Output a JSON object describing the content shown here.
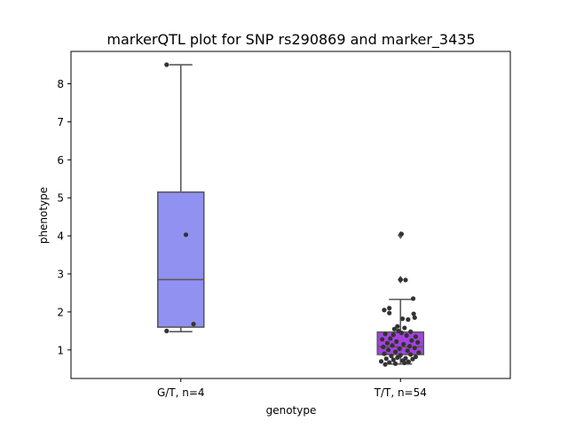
{
  "chart_data": {
    "type": "box",
    "title": "markerQTL plot for SNP rs290869 and marker_3435",
    "xlabel": "genotype",
    "ylabel": "phenotype",
    "ylim": [
      0.25,
      8.85
    ],
    "yticks": [
      1,
      2,
      3,
      4,
      5,
      6,
      7,
      8
    ],
    "categories": [
      "G/T, n=4",
      "T/T, n=54"
    ],
    "colors": [
      "#9191f2",
      "#a542e0"
    ],
    "groups": [
      {
        "name": "G/T, n=4",
        "q1": 1.6,
        "median": 2.85,
        "q3": 5.15,
        "whisker_low": 1.48,
        "whisker_high": 8.5,
        "outliers": [],
        "points": [
          {
            "x": -0.28,
            "y": 8.5
          },
          {
            "x": 0.1,
            "y": 4.03
          },
          {
            "x": -0.28,
            "y": 1.5
          },
          {
            "x": 0.25,
            "y": 1.68
          }
        ]
      },
      {
        "name": "T/T, n=54",
        "q1": 0.88,
        "median": 1.08,
        "q3": 1.47,
        "whisker_low": 0.63,
        "whisker_high": 2.33,
        "outliers": [
          2.85,
          4.02
        ],
        "points": [
          {
            "x": 0.02,
            "y": 4.05
          },
          {
            "x": 0.0,
            "y": 2.85
          },
          {
            "x": 0.1,
            "y": 2.84
          },
          {
            "x": 0.25,
            "y": 2.35
          },
          {
            "x": -0.22,
            "y": 2.1
          },
          {
            "x": -0.32,
            "y": 2.05
          },
          {
            "x": -0.22,
            "y": 1.97
          },
          {
            "x": 0.26,
            "y": 1.95
          },
          {
            "x": 0.28,
            "y": 1.85
          },
          {
            "x": 0.04,
            "y": 1.82
          },
          {
            "x": 0.15,
            "y": 1.8
          },
          {
            "x": -0.06,
            "y": 1.62
          },
          {
            "x": 0.08,
            "y": 1.58
          },
          {
            "x": -0.04,
            "y": 1.5
          },
          {
            "x": 0.02,
            "y": 1.45
          },
          {
            "x": -0.3,
            "y": 1.42
          },
          {
            "x": -0.14,
            "y": 1.4
          },
          {
            "x": 0.12,
            "y": 1.38
          },
          {
            "x": 0.3,
            "y": 1.35
          },
          {
            "x": -0.2,
            "y": 1.3
          },
          {
            "x": -0.36,
            "y": 1.28
          },
          {
            "x": 0.22,
            "y": 1.25
          },
          {
            "x": -0.08,
            "y": 1.22
          },
          {
            "x": 0.34,
            "y": 1.2
          },
          {
            "x": -0.26,
            "y": 1.18
          },
          {
            "x": 0.06,
            "y": 1.15
          },
          {
            "x": -0.16,
            "y": 1.12
          },
          {
            "x": 0.18,
            "y": 1.1
          },
          {
            "x": -0.34,
            "y": 1.08
          },
          {
            "x": 0.28,
            "y": 1.05
          },
          {
            "x": -0.02,
            "y": 1.03
          },
          {
            "x": -0.24,
            "y": 1.0
          },
          {
            "x": 0.14,
            "y": 0.98
          },
          {
            "x": -0.1,
            "y": 0.95
          },
          {
            "x": 0.36,
            "y": 0.93
          },
          {
            "x": -0.32,
            "y": 0.9
          },
          {
            "x": 0.2,
            "y": 0.88
          },
          {
            "x": 0.0,
            "y": 0.86
          },
          {
            "x": -0.18,
            "y": 0.84
          },
          {
            "x": 0.3,
            "y": 0.82
          },
          {
            "x": -0.06,
            "y": 0.8
          },
          {
            "x": 0.1,
            "y": 0.78
          },
          {
            "x": -0.28,
            "y": 0.77
          },
          {
            "x": 0.24,
            "y": 0.76
          },
          {
            "x": -0.14,
            "y": 0.74
          },
          {
            "x": 0.04,
            "y": 0.72
          },
          {
            "x": -0.38,
            "y": 0.7
          },
          {
            "x": 0.16,
            "y": 0.69
          },
          {
            "x": -0.22,
            "y": 0.67
          },
          {
            "x": 0.08,
            "y": 0.66
          },
          {
            "x": -0.1,
            "y": 0.64
          },
          {
            "x": -0.3,
            "y": 0.62
          },
          {
            "x": 0.2,
            "y": 1.48
          },
          {
            "x": -0.12,
            "y": 1.55
          }
        ]
      }
    ]
  }
}
